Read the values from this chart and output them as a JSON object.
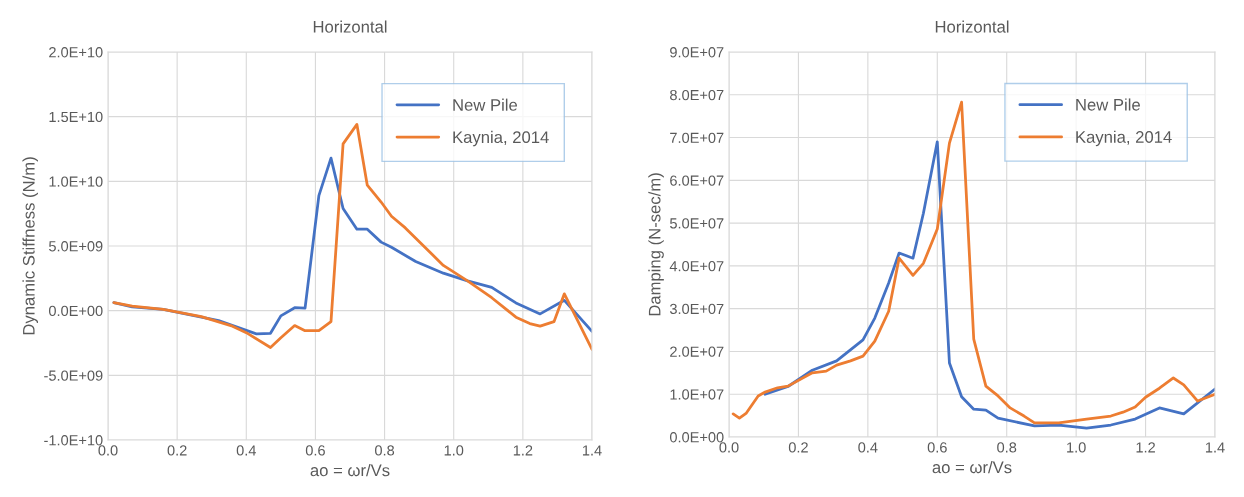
{
  "chart_data": [
    {
      "type": "line",
      "title": "Horizontal",
      "xlabel": "ao = ωr/Vs",
      "ylabel": "Dynamic Stiffness (N/m)",
      "xlim": [
        0,
        1.4
      ],
      "xticks": [
        {
          "value": 0,
          "label": "0.0"
        },
        {
          "value": 0.2,
          "label": "0.2"
        },
        {
          "value": 0.4,
          "label": "0.4"
        },
        {
          "value": 0.6,
          "label": "0.6"
        },
        {
          "value": 0.8,
          "label": "0.8"
        },
        {
          "value": 1.0,
          "label": "1.0"
        },
        {
          "value": 1.2,
          "label": "1.2"
        },
        {
          "value": 1.4,
          "label": "1.4"
        }
      ],
      "ylim": [
        -10000000000.0,
        20000000000.0
      ],
      "yticks": [
        {
          "value": -10000000000.0,
          "label": "-1.0E+10"
        },
        {
          "value": -5000000000.0,
          "label": "-5.0E+09"
        },
        {
          "value": 0,
          "label": "0.0E+00"
        },
        {
          "value": 5000000000.0,
          "label": "5.0E+09"
        },
        {
          "value": 10000000000.0,
          "label": "1.0E+10"
        },
        {
          "value": 15000000000.0,
          "label": "1.5E+10"
        },
        {
          "value": 20000000000.0,
          "label": "2.0E+10"
        }
      ],
      "grid": true,
      "legend": "top right",
      "marker": "none",
      "line_style": "solid",
      "series": [
        {
          "name": "New Pile",
          "color": "#4472c4",
          "x": [
            0.017,
            0.07,
            0.16,
            0.32,
            0.43,
            0.47,
            0.5,
            0.54,
            0.57,
            0.61,
            0.645,
            0.68,
            0.72,
            0.75,
            0.79,
            0.82,
            0.89,
            0.97,
            1.04,
            1.11,
            1.18,
            1.25,
            1.32,
            1.4
          ],
          "values": [
            620000000.0,
            300000000.0,
            100000000.0,
            -770000000.0,
            -1800000000.0,
            -1750000000.0,
            -400000000.0,
            230000000.0,
            200000000.0,
            8900000000.0,
            11800000000.0,
            7900000000.0,
            6300000000.0,
            6300000000.0,
            5300000000.0,
            4900000000.0,
            3800000000.0,
            2900000000.0,
            2300000000.0,
            1800000000.0,
            600000000.0,
            -250000000.0,
            800000000.0,
            -1600000000.0
          ]
        },
        {
          "name": "Kaynia, 2014",
          "color": "#ed7d31",
          "x": [
            0.017,
            0.07,
            0.16,
            0.27,
            0.36,
            0.4,
            0.47,
            0.5,
            0.54,
            0.57,
            0.61,
            0.645,
            0.68,
            0.72,
            0.75,
            0.79,
            0.82,
            0.86,
            0.97,
            1.04,
            1.11,
            1.18,
            1.22,
            1.25,
            1.29,
            1.32,
            1.4
          ],
          "values": [
            620000000.0,
            350000000.0,
            100000000.0,
            -460000000.0,
            -1200000000.0,
            -1700000000.0,
            -2850000000.0,
            -2100000000.0,
            -1150000000.0,
            -1550000000.0,
            -1550000000.0,
            -850000000.0,
            12900000000.0,
            14400000000.0,
            9700000000.0,
            8400000000.0,
            7300000000.0,
            6400000000.0,
            3500000000.0,
            2300000000.0,
            1000000000.0,
            -500000000.0,
            -1000000000.0,
            -1200000000.0,
            -850000000.0,
            1300000000.0,
            -3000000000.0
          ]
        }
      ]
    },
    {
      "type": "line",
      "title": "Horizontal",
      "xlabel": "ao = ωr/Vs",
      "ylabel": "Damping (N-sec/m)",
      "xlim": [
        0,
        1.4
      ],
      "xticks": [
        {
          "value": 0,
          "label": "0.0"
        },
        {
          "value": 0.2,
          "label": "0.2"
        },
        {
          "value": 0.4,
          "label": "0.4"
        },
        {
          "value": 0.6,
          "label": "0.6"
        },
        {
          "value": 0.8,
          "label": "0.8"
        },
        {
          "value": 1.0,
          "label": "1.0"
        },
        {
          "value": 1.2,
          "label": "1.2"
        },
        {
          "value": 1.4,
          "label": "1.4"
        }
      ],
      "ylim": [
        0,
        90000000.0
      ],
      "yticks": [
        {
          "value": 0,
          "label": "0.0E+00"
        },
        {
          "value": 10000000.0,
          "label": "1.0E+07"
        },
        {
          "value": 20000000.0,
          "label": "2.0E+07"
        },
        {
          "value": 30000000.0,
          "label": "3.0E+07"
        },
        {
          "value": 40000000.0,
          "label": "4.0E+07"
        },
        {
          "value": 50000000.0,
          "label": "5.0E+07"
        },
        {
          "value": 60000000.0,
          "label": "6.0E+07"
        },
        {
          "value": 70000000.0,
          "label": "7.0E+07"
        },
        {
          "value": 80000000.0,
          "label": "8.0E+07"
        },
        {
          "value": 90000000.0,
          "label": "9.0E+07"
        }
      ],
      "grid": true,
      "legend": "top right",
      "marker": "none",
      "line_style": "solid",
      "series": [
        {
          "name": "New Pile",
          "color": "#4472c4",
          "x": [
            0.104,
            0.17,
            0.24,
            0.31,
            0.386,
            0.42,
            0.46,
            0.49,
            0.53,
            0.56,
            0.6,
            0.635,
            0.67,
            0.705,
            0.74,
            0.775,
            0.88,
            0.95,
            1.03,
            1.1,
            1.17,
            1.24,
            1.31,
            1.4
          ],
          "values": [
            10000000.0,
            11800000.0,
            15600000.0,
            17800000.0,
            22700000.0,
            27800000.0,
            36000000.0,
            43000000.0,
            41800000.0,
            52300000.0,
            69000000.0,
            17300000.0,
            9400000.0,
            6500000.0,
            6300000.0,
            4400000.0,
            2600000.0,
            2800000.0,
            2100000.0,
            2800000.0,
            4200000.0,
            6800000.0,
            5400000.0,
            11200000.0
          ]
        },
        {
          "name": "Kaynia, 2014",
          "color": "#ed7d31",
          "x": [
            0.012,
            0.03,
            0.05,
            0.084,
            0.104,
            0.14,
            0.17,
            0.24,
            0.28,
            0.31,
            0.35,
            0.386,
            0.42,
            0.46,
            0.49,
            0.53,
            0.56,
            0.6,
            0.635,
            0.67,
            0.705,
            0.74,
            0.775,
            0.81,
            0.85,
            0.88,
            0.92,
            0.95,
            1.03,
            1.1,
            1.135,
            1.17,
            1.2,
            1.24,
            1.28,
            1.31,
            1.35,
            1.4
          ],
          "values": [
            5400000.0,
            4400000.0,
            5600000.0,
            9600000.0,
            10500000.0,
            11500000.0,
            11900000.0,
            15000000.0,
            15400000.0,
            16800000.0,
            17800000.0,
            18900000.0,
            22400000.0,
            29400000.0,
            41800000.0,
            37800000.0,
            40600000.0,
            48600000.0,
            68700000.0,
            78300000.0,
            22900000.0,
            11900000.0,
            9600000.0,
            6800000.0,
            4900000.0,
            3300000.0,
            3300000.0,
            3300000.0,
            4200000.0,
            4900000.0,
            5800000.0,
            7000000.0,
            9300000.0,
            11400000.0,
            13800000.0,
            12200000.0,
            8400000.0,
            10000000.0
          ]
        }
      ]
    }
  ]
}
